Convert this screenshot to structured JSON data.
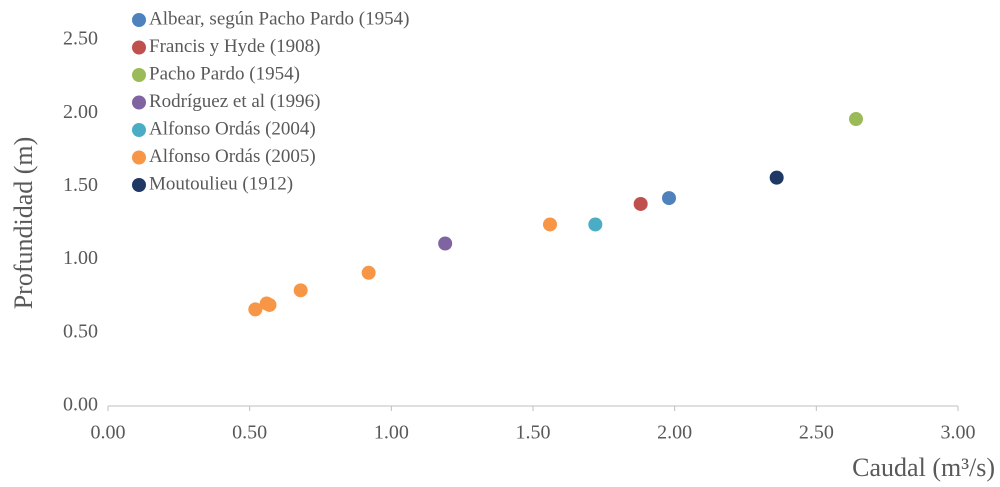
{
  "chart_data": {
    "type": "scatter",
    "x_label": "Caudal (m³/s)",
    "y_label": "Profundidad (m)",
    "xlim": [
      0,
      3
    ],
    "ylim": [
      0,
      2.5
    ],
    "xticks": [
      {
        "value": 0,
        "label": "0.00"
      },
      {
        "value": 0.5,
        "label": "0.50"
      },
      {
        "value": 1,
        "label": "1.00"
      },
      {
        "value": 1.5,
        "label": "1.50"
      },
      {
        "value": 2,
        "label": "2.00"
      },
      {
        "value": 2.5,
        "label": "2.50"
      },
      {
        "value": 3,
        "label": "3.00"
      }
    ],
    "yticks": [
      {
        "value": 0,
        "label": "0.00"
      },
      {
        "value": 0.5,
        "label": "0.50"
      },
      {
        "value": 1,
        "label": "1.00"
      },
      {
        "value": 1.5,
        "label": "1.50"
      },
      {
        "value": 2,
        "label": "2.00"
      },
      {
        "value": 2.5,
        "label": "2.50"
      }
    ],
    "grid": false,
    "legend": "top-left",
    "series": [
      {
        "name": "Albear, según Pacho Pardo (1954)",
        "color": "#4f81bd",
        "x": [
          1.98
        ],
        "values": [
          1.42
        ]
      },
      {
        "name": "Francis y Hyde (1908)",
        "color": "#c0504d",
        "x": [
          1.88
        ],
        "values": [
          1.38
        ]
      },
      {
        "name": "Pacho Pardo (1954)",
        "color": "#9bbb59",
        "x": [
          2.64
        ],
        "values": [
          1.96
        ]
      },
      {
        "name": "Rodríguez et al (1996)",
        "color": "#8064a2",
        "x": [
          1.19
        ],
        "values": [
          1.11
        ]
      },
      {
        "name": "Alfonso Ordás (2004)",
        "color": "#4bacc6",
        "x": [
          1.72
        ],
        "values": [
          1.24
        ]
      },
      {
        "name": "Alfonso Ordás (2005)",
        "color": "#f79646",
        "x": [
          1.56,
          0.92,
          0.68,
          0.56,
          0.57,
          0.52
        ],
        "values": [
          1.24,
          0.91,
          0.79,
          0.7,
          0.69,
          0.66
        ]
      },
      {
        "name": "Moutoulieu (1912)",
        "color": "#1f3864",
        "x": [
          2.36
        ],
        "values": [
          1.56
        ]
      }
    ]
  }
}
